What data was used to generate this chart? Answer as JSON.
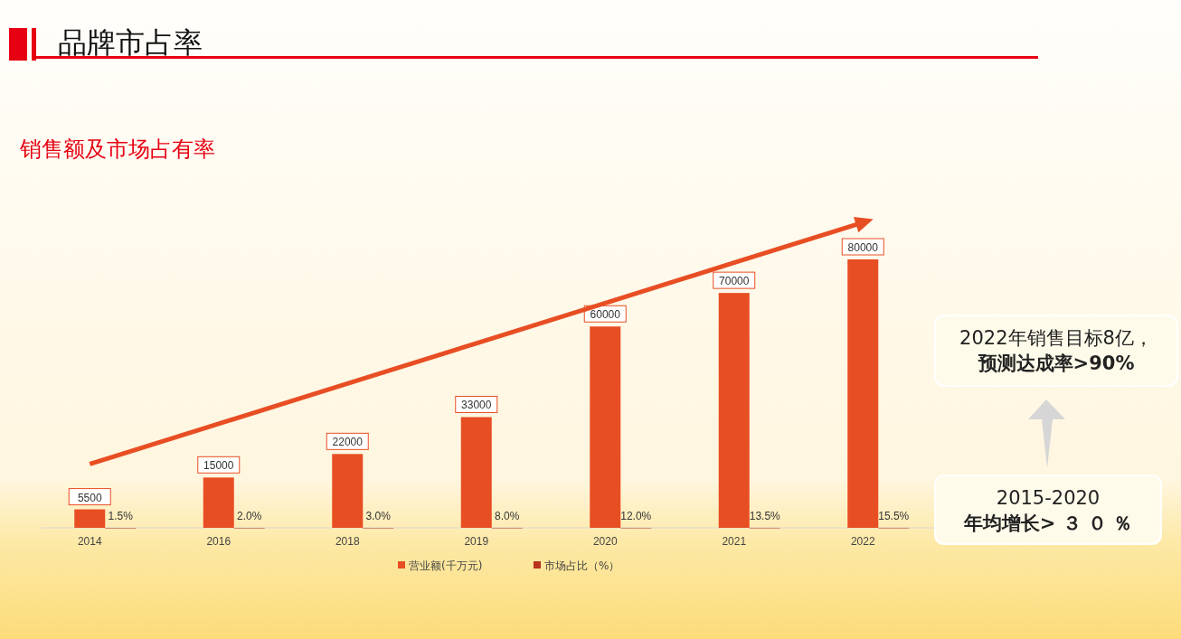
{
  "chart_data": {
    "type": "bar",
    "title": "品牌市占率",
    "subtitle": "销售额及市场占有率",
    "categories": [
      "2014",
      "2016",
      "2018",
      "2019",
      "2020",
      "2021",
      "2022"
    ],
    "series": [
      {
        "name": "营业额(千万元)",
        "color": "#e84e23",
        "values": [
          5500,
          15000,
          22000,
          33000,
          60000,
          70000,
          80000
        ],
        "value_labels": [
          "5500",
          "15000",
          "22000",
          "33000",
          "60000",
          "70000",
          "80000"
        ]
      },
      {
        "name": "市场占比（%）",
        "color": "#b8321e",
        "values": [
          1.5,
          2.0,
          3.0,
          8.0,
          12.0,
          13.5,
          15.5
        ],
        "value_labels": [
          "1.5%",
          "2.0%",
          "3.0%",
          "8.0%",
          "12.0%",
          "13.5%",
          "15.5%"
        ]
      },
      {
        "type": "line",
        "color": "#e84e23",
        "values": [
          19000,
          31000,
          43000,
          55000,
          67000,
          79000,
          91000
        ]
      }
    ],
    "tick_labels": "x",
    "legend": "bottom",
    "annotations": [
      "2022年销售目标8亿，",
      "预测达成率>90%",
      "2015-2020",
      "年均增长> ３ ０ ％"
    ]
  }
}
